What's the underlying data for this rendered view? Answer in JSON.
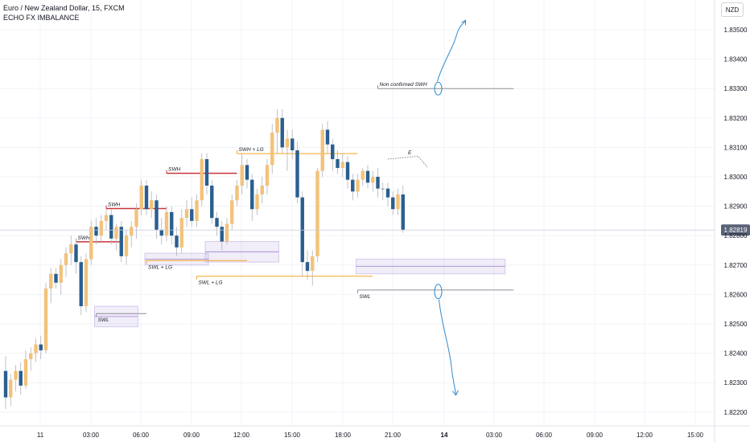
{
  "header": {
    "title": "Euro / New Zealand Dollar, 15, FXCM",
    "indicator": "ECHO FX IMBALANCE",
    "currency": "NZD"
  },
  "colors": {
    "bull": "#f3c27a",
    "bear": "#2a5f8f",
    "neutral": "#8d8f95",
    "swh_line": "#c9353b",
    "lg_line": "#f5a623",
    "box": "#b39ddb",
    "drawing": "#2f8bd0",
    "grid": "#f0f3fa"
  },
  "chart_data": {
    "type": "candlestick",
    "symbol": "EURNZD",
    "timeframe": "15",
    "title": "Euro / New Zealand Dollar, 15, FXCM",
    "ylim": [
      1.8218,
      1.8358
    ],
    "y_ticks": [
      "1.83500",
      "1.83400",
      "1.83300",
      "1.83200",
      "1.83100",
      "1.83000",
      "1.82900",
      "1.82800",
      "1.82700",
      "1.82600",
      "1.82500",
      "1.82400",
      "1.82300",
      "1.82200"
    ],
    "x_ticks": [
      "11",
      "03:00",
      "06:00",
      "09:00",
      "12:00",
      "15:00",
      "18:00",
      "21:00",
      "14",
      "03:00",
      "06:00",
      "09:00",
      "12:00",
      "15:00"
    ],
    "last_price": "1.82819",
    "candles": [
      {
        "o": 1.8234,
        "h": 1.8239,
        "l": 1.8221,
        "c": 1.8225
      },
      {
        "o": 1.8225,
        "h": 1.8233,
        "l": 1.8222,
        "c": 1.8231
      },
      {
        "o": 1.8231,
        "h": 1.8236,
        "l": 1.8227,
        "c": 1.8234
      },
      {
        "o": 1.8234,
        "h": 1.8237,
        "l": 1.8226,
        "c": 1.8229
      },
      {
        "o": 1.8229,
        "h": 1.8241,
        "l": 1.8228,
        "c": 1.8238
      },
      {
        "o": 1.8238,
        "h": 1.8242,
        "l": 1.8234,
        "c": 1.824
      },
      {
        "o": 1.824,
        "h": 1.8245,
        "l": 1.8237,
        "c": 1.8243
      },
      {
        "o": 1.8243,
        "h": 1.8246,
        "l": 1.8238,
        "c": 1.8241
      },
      {
        "o": 1.8241,
        "h": 1.8264,
        "l": 1.824,
        "c": 1.8262
      },
      {
        "o": 1.8262,
        "h": 1.8269,
        "l": 1.8257,
        "c": 1.8267
      },
      {
        "o": 1.8267,
        "h": 1.8269,
        "l": 1.8262,
        "c": 1.8264
      },
      {
        "o": 1.8264,
        "h": 1.8272,
        "l": 1.826,
        "c": 1.827
      },
      {
        "o": 1.827,
        "h": 1.8276,
        "l": 1.8266,
        "c": 1.8274
      },
      {
        "o": 1.8274,
        "h": 1.828,
        "l": 1.827,
        "c": 1.8277
      },
      {
        "o": 1.8277,
        "h": 1.8279,
        "l": 1.8267,
        "c": 1.8271
      },
      {
        "o": 1.8271,
        "h": 1.8273,
        "l": 1.8253,
        "c": 1.8256
      },
      {
        "o": 1.8256,
        "h": 1.8274,
        "l": 1.8254,
        "c": 1.8272
      },
      {
        "o": 1.8272,
        "h": 1.8285,
        "l": 1.827,
        "c": 1.8283
      },
      {
        "o": 1.8283,
        "h": 1.8286,
        "l": 1.8277,
        "c": 1.828
      },
      {
        "o": 1.828,
        "h": 1.8287,
        "l": 1.8278,
        "c": 1.8285
      },
      {
        "o": 1.8285,
        "h": 1.8289,
        "l": 1.8282,
        "c": 1.8287
      },
      {
        "o": 1.8287,
        "h": 1.8289,
        "l": 1.8277,
        "c": 1.8279
      },
      {
        "o": 1.8279,
        "h": 1.8284,
        "l": 1.8275,
        "c": 1.8283
      },
      {
        "o": 1.8283,
        "h": 1.8285,
        "l": 1.8271,
        "c": 1.8273
      },
      {
        "o": 1.8273,
        "h": 1.8282,
        "l": 1.827,
        "c": 1.828
      },
      {
        "o": 1.828,
        "h": 1.8285,
        "l": 1.8276,
        "c": 1.8283
      },
      {
        "o": 1.8283,
        "h": 1.8291,
        "l": 1.8279,
        "c": 1.8289
      },
      {
        "o": 1.8289,
        "h": 1.8299,
        "l": 1.8287,
        "c": 1.8297
      },
      {
        "o": 1.8297,
        "h": 1.8299,
        "l": 1.8287,
        "c": 1.8289
      },
      {
        "o": 1.8289,
        "h": 1.8295,
        "l": 1.8286,
        "c": 1.8292
      },
      {
        "o": 1.8292,
        "h": 1.8294,
        "l": 1.8279,
        "c": 1.8282
      },
      {
        "o": 1.8282,
        "h": 1.8286,
        "l": 1.8277,
        "c": 1.828
      },
      {
        "o": 1.828,
        "h": 1.829,
        "l": 1.8278,
        "c": 1.8288
      },
      {
        "o": 1.8288,
        "h": 1.829,
        "l": 1.8277,
        "c": 1.828
      },
      {
        "o": 1.828,
        "h": 1.8283,
        "l": 1.8273,
        "c": 1.8276
      },
      {
        "o": 1.8276,
        "h": 1.8289,
        "l": 1.8274,
        "c": 1.8286
      },
      {
        "o": 1.8286,
        "h": 1.8292,
        "l": 1.8283,
        "c": 1.8289
      },
      {
        "o": 1.8289,
        "h": 1.8293,
        "l": 1.8283,
        "c": 1.8285
      },
      {
        "o": 1.8285,
        "h": 1.8294,
        "l": 1.8283,
        "c": 1.8292
      },
      {
        "o": 1.8292,
        "h": 1.8308,
        "l": 1.829,
        "c": 1.8306
      },
      {
        "o": 1.8306,
        "h": 1.8308,
        "l": 1.8294,
        "c": 1.8297
      },
      {
        "o": 1.8297,
        "h": 1.8299,
        "l": 1.8284,
        "c": 1.8286
      },
      {
        "o": 1.8286,
        "h": 1.8288,
        "l": 1.828,
        "c": 1.8283
      },
      {
        "o": 1.8283,
        "h": 1.8285,
        "l": 1.8275,
        "c": 1.8278
      },
      {
        "o": 1.8278,
        "h": 1.8286,
        "l": 1.8277,
        "c": 1.8284
      },
      {
        "o": 1.8284,
        "h": 1.8294,
        "l": 1.8282,
        "c": 1.8292
      },
      {
        "o": 1.8292,
        "h": 1.8299,
        "l": 1.829,
        "c": 1.8297
      },
      {
        "o": 1.8297,
        "h": 1.8308,
        "l": 1.8294,
        "c": 1.8304
      },
      {
        "o": 1.8304,
        "h": 1.8306,
        "l": 1.8296,
        "c": 1.8299
      },
      {
        "o": 1.8299,
        "h": 1.8301,
        "l": 1.8285,
        "c": 1.8289
      },
      {
        "o": 1.8289,
        "h": 1.8296,
        "l": 1.8287,
        "c": 1.8294
      },
      {
        "o": 1.8294,
        "h": 1.83,
        "l": 1.8291,
        "c": 1.8297
      },
      {
        "o": 1.8297,
        "h": 1.8306,
        "l": 1.8294,
        "c": 1.8304
      },
      {
        "o": 1.8304,
        "h": 1.8318,
        "l": 1.8301,
        "c": 1.8315
      },
      {
        "o": 1.8315,
        "h": 1.8323,
        "l": 1.8308,
        "c": 1.832
      },
      {
        "o": 1.832,
        "h": 1.8323,
        "l": 1.8308,
        "c": 1.831
      },
      {
        "o": 1.831,
        "h": 1.8316,
        "l": 1.8302,
        "c": 1.8313
      },
      {
        "o": 1.8313,
        "h": 1.8316,
        "l": 1.8306,
        "c": 1.8309
      },
      {
        "o": 1.8309,
        "h": 1.8312,
        "l": 1.8291,
        "c": 1.8293
      },
      {
        "o": 1.8293,
        "h": 1.8295,
        "l": 1.8266,
        "c": 1.8271
      },
      {
        "o": 1.8271,
        "h": 1.8275,
        "l": 1.8265,
        "c": 1.8268
      },
      {
        "o": 1.8268,
        "h": 1.8275,
        "l": 1.8263,
        "c": 1.8273
      },
      {
        "o": 1.8273,
        "h": 1.8303,
        "l": 1.8271,
        "c": 1.8302
      },
      {
        "o": 1.8302,
        "h": 1.8318,
        "l": 1.83,
        "c": 1.8316
      },
      {
        "o": 1.8316,
        "h": 1.8319,
        "l": 1.8308,
        "c": 1.8311
      },
      {
        "o": 1.8311,
        "h": 1.8313,
        "l": 1.8302,
        "c": 1.8306
      },
      {
        "o": 1.8306,
        "h": 1.8309,
        "l": 1.8301,
        "c": 1.8303
      },
      {
        "o": 1.8303,
        "h": 1.8308,
        "l": 1.83,
        "c": 1.8305
      },
      {
        "o": 1.8305,
        "h": 1.8307,
        "l": 1.8296,
        "c": 1.8299
      },
      {
        "o": 1.8299,
        "h": 1.8301,
        "l": 1.8292,
        "c": 1.8295
      },
      {
        "o": 1.8295,
        "h": 1.8301,
        "l": 1.8293,
        "c": 1.8299
      },
      {
        "o": 1.8299,
        "h": 1.8303,
        "l": 1.8297,
        "c": 1.8302
      },
      {
        "o": 1.8302,
        "h": 1.8304,
        "l": 1.8296,
        "c": 1.8298
      },
      {
        "o": 1.8298,
        "h": 1.8302,
        "l": 1.8295,
        "c": 1.83
      },
      {
        "o": 1.83,
        "h": 1.8303,
        "l": 1.8293,
        "c": 1.8296
      },
      {
        "o": 1.8296,
        "h": 1.8298,
        "l": 1.8292,
        "c": 1.8296
      },
      {
        "o": 1.8296,
        "h": 1.8298,
        "l": 1.829,
        "c": 1.8293
      },
      {
        "o": 1.8293,
        "h": 1.8295,
        "l": 1.8287,
        "c": 1.8289
      },
      {
        "o": 1.8289,
        "h": 1.8296,
        "l": 1.8287,
        "c": 1.8294
      },
      {
        "o": 1.8294,
        "h": 1.8297,
        "l": 1.8281,
        "c": 1.8282
      }
    ],
    "annotations": [
      {
        "label": "SWH",
        "price": 1.82779,
        "from": 14,
        "to": 23,
        "color": "swh_line"
      },
      {
        "label": "SWH",
        "price": 1.82892,
        "from": 20,
        "to": 32,
        "color": "swh_line"
      },
      {
        "label": "SWH",
        "price": 1.83012,
        "from": 32,
        "to": 46,
        "color": "swh_line"
      },
      {
        "label": "SWH + LG",
        "price": 1.83079,
        "from": 46,
        "to": 70,
        "color": "lg_line"
      },
      {
        "label": "Non confirmed SWH",
        "price": 1.833,
        "from": 74,
        "to": 101,
        "color": "neutral"
      },
      {
        "label": "SWL",
        "price": 1.82535,
        "from": 18,
        "to": 28,
        "color": "neutral"
      },
      {
        "label": "SWL + LG",
        "price": 1.82715,
        "from": 28,
        "to": 48,
        "color": "lg_line"
      },
      {
        "label": "SWL + LG",
        "price": 1.82662,
        "from": 38,
        "to": 73,
        "color": "lg_line"
      },
      {
        "label": "SWL",
        "price": 1.82615,
        "from": 70,
        "to": 101,
        "color": "neutral"
      }
    ],
    "imbalance_zones": [
      {
        "top": 1.8256,
        "bottom": 1.8249,
        "from": 18,
        "to": 26
      },
      {
        "top": 1.8274,
        "bottom": 1.827,
        "from": 28,
        "to": 40
      },
      {
        "top": 1.8278,
        "bottom": 1.8271,
        "from": 40,
        "to": 54
      },
      {
        "top": 1.8272,
        "bottom": 1.8267,
        "from": 70,
        "to": 99
      }
    ],
    "text_marks": [
      {
        "label": "E",
        "price": 1.83076,
        "at": 80
      }
    ],
    "grid": true
  }
}
